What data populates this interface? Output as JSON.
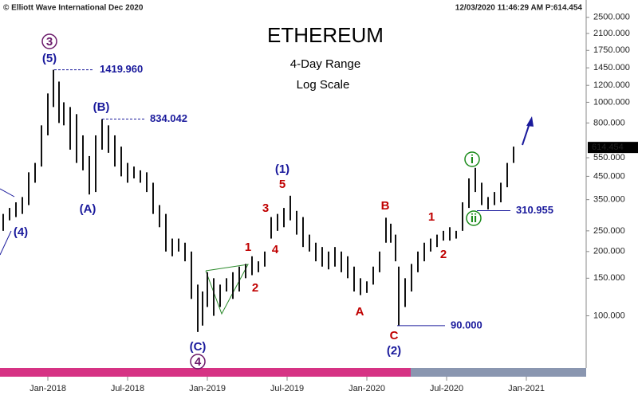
{
  "header": {
    "source": "© Elliott Wave International Dec 2020",
    "timestamp": "12/03/2020 11:46:29 AM  P:614.454"
  },
  "chart_data": {
    "type": "range",
    "title": "ETHEREUM",
    "subtitle": "4-Day Range",
    "scale_label": "Log Scale",
    "log_scale": true,
    "color": "#111111",
    "x": [
      2017.72,
      2017.76,
      2017.8,
      2017.84,
      2017.88,
      2017.92,
      2017.96,
      2018.0,
      2018.035,
      2018.07,
      2018.1,
      2018.14,
      2018.18,
      2018.22,
      2018.26,
      2018.3,
      2018.34,
      2018.38,
      2018.42,
      2018.46,
      2018.5,
      2018.54,
      2018.58,
      2018.62,
      2018.66,
      2018.7,
      2018.74,
      2018.78,
      2018.82,
      2018.86,
      2018.9,
      2018.94,
      2018.97,
      2019.0,
      2019.04,
      2019.08,
      2019.12,
      2019.16,
      2019.2,
      2019.24,
      2019.28,
      2019.32,
      2019.36,
      2019.4,
      2019.44,
      2019.48,
      2019.52,
      2019.56,
      2019.6,
      2019.64,
      2019.68,
      2019.72,
      2019.76,
      2019.8,
      2019.84,
      2019.88,
      2019.92,
      2019.96,
      2020.0,
      2020.04,
      2020.08,
      2020.12,
      2020.15,
      2020.18,
      2020.2,
      2020.24,
      2020.28,
      2020.32,
      2020.36,
      2020.4,
      2020.44,
      2020.48,
      2020.52,
      2020.56,
      2020.6,
      2020.64,
      2020.68,
      2020.72,
      2020.76,
      2020.8,
      2020.84,
      2020.88,
      2020.92
    ],
    "low": [
      250,
      280,
      290,
      300,
      330,
      420,
      500,
      700,
      950,
      800,
      780,
      600,
      520,
      480,
      370,
      380,
      600,
      580,
      500,
      450,
      420,
      440,
      420,
      380,
      300,
      260,
      200,
      190,
      200,
      180,
      120,
      84,
      90,
      110,
      100,
      110,
      130,
      120,
      130,
      150,
      155,
      160,
      170,
      230,
      250,
      260,
      280,
      240,
      210,
      200,
      180,
      170,
      165,
      170,
      160,
      150,
      130,
      125,
      128,
      140,
      160,
      220,
      220,
      180,
      90,
      110,
      130,
      160,
      180,
      200,
      210,
      225,
      225,
      230,
      250,
      320,
      380,
      330,
      315,
      330,
      340,
      400,
      520
    ],
    "high": [
      300,
      320,
      340,
      360,
      470,
      520,
      780,
      1100,
      1420,
      1250,
      1000,
      950,
      880,
      700,
      560,
      700,
      834,
      780,
      700,
      620,
      520,
      500,
      480,
      470,
      420,
      330,
      300,
      230,
      230,
      220,
      200,
      140,
      130,
      160,
      150,
      140,
      150,
      160,
      170,
      175,
      190,
      180,
      200,
      290,
      300,
      320,
      365,
      310,
      290,
      240,
      220,
      210,
      200,
      210,
      200,
      190,
      170,
      150,
      145,
      170,
      200,
      288,
      270,
      240,
      170,
      150,
      175,
      200,
      220,
      230,
      240,
      250,
      260,
      250,
      340,
      440,
      493,
      420,
      360,
      380,
      420,
      520,
      620
    ],
    "xlim": [
      2017.7,
      2021.375
    ],
    "xticks": [
      {
        "value": 2018.0,
        "label": "Jan-2018"
      },
      {
        "value": 2018.5,
        "label": "Jul-2018"
      },
      {
        "value": 2019.0,
        "label": "Jan-2019"
      },
      {
        "value": 2019.5,
        "label": "Jul-2019"
      },
      {
        "value": 2020.0,
        "label": "Jan-2020"
      },
      {
        "value": 2020.5,
        "label": "Jul-2020"
      },
      {
        "value": 2021.0,
        "label": "Jan-2021"
      }
    ],
    "ylim": [
      57,
      3013
    ],
    "yticks": [
      {
        "value": 100,
        "label": "100.000"
      },
      {
        "value": 150,
        "label": "150.000"
      },
      {
        "value": 200,
        "label": "200.000"
      },
      {
        "value": 250,
        "label": "250.000"
      },
      {
        "value": 350,
        "label": "350.000"
      },
      {
        "value": 450,
        "label": "450.000"
      },
      {
        "value": 550,
        "label": "550.000"
      },
      {
        "value": 800,
        "label": "800.000"
      },
      {
        "value": 1000,
        "label": "1000.000"
      },
      {
        "value": 1200,
        "label": "1200.000"
      },
      {
        "value": 1450,
        "label": "1450.000"
      },
      {
        "value": 1750,
        "label": "1750.000"
      },
      {
        "value": 2100,
        "label": "2100.000"
      },
      {
        "value": 2500,
        "label": "2500.000"
      }
    ],
    "last_price": {
      "value": 614.454,
      "label": "614.454"
    },
    "levels": [
      {
        "value": 1419.96,
        "label": "1419.960"
      },
      {
        "value": 834.042,
        "label": "834.042"
      },
      {
        "value": 310.955,
        "label": "310.955"
      },
      {
        "value": 90,
        "label": "90.000"
      }
    ],
    "annotations": [
      {
        "text": "3",
        "color": "#6a1a6a",
        "circled": true
      },
      {
        "text": "(5)",
        "color": "#1a1a9c",
        "circled": false
      },
      {
        "text": "(B)",
        "color": "#1a1a9c",
        "circled": false
      },
      {
        "text": "(A)",
        "color": "#1a1a9c",
        "circled": false
      },
      {
        "text": "(4)",
        "color": "#1a1a9c",
        "circled": false
      },
      {
        "text": "(C)",
        "color": "#1a1a9c",
        "circled": false
      },
      {
        "text": "4",
        "color": "#6a1a6a",
        "circled": true
      },
      {
        "text": "(1)",
        "color": "#1a1a9c",
        "circled": false
      },
      {
        "text": "5",
        "color": "#c00000",
        "circled": false
      },
      {
        "text": "3",
        "color": "#c00000",
        "circled": false
      },
      {
        "text": "4",
        "color": "#c00000",
        "circled": false
      },
      {
        "text": "1",
        "color": "#c00000",
        "circled": false
      },
      {
        "text": "2",
        "color": "#c00000",
        "circled": false
      },
      {
        "text": "B",
        "color": "#c00000",
        "circled": false
      },
      {
        "text": "A",
        "color": "#c00000",
        "circled": false
      },
      {
        "text": "C",
        "color": "#c00000",
        "circled": false
      },
      {
        "text": "(2)",
        "color": "#1a1a9c",
        "circled": false
      },
      {
        "text": "1",
        "color": "#c00000",
        "circled": false
      },
      {
        "text": "2",
        "color": "#c00000",
        "circled": false
      },
      {
        "text": "i",
        "color": "#1a8a1a",
        "circled": true
      },
      {
        "text": "ii",
        "color": "#1a8a1a",
        "circled": true
      }
    ]
  }
}
